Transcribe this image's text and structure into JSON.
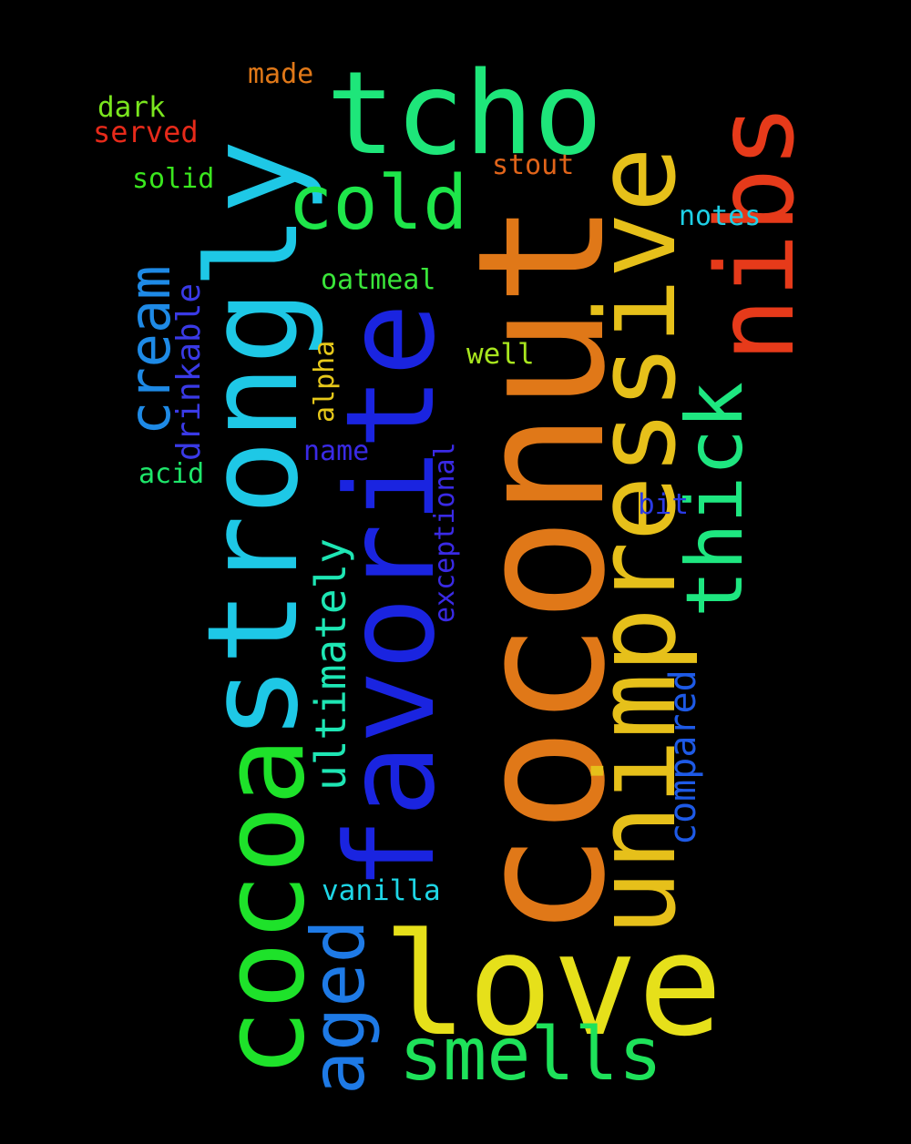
{
  "words": [
    {
      "id": "coconut",
      "text": "coconut",
      "color": "#e07818"
    },
    {
      "id": "favorite",
      "text": "favorite",
      "color": "#1a24e0"
    },
    {
      "id": "strongly",
      "text": "strongly",
      "color": "#1ec8e6"
    },
    {
      "id": "cocoa",
      "text": "cocoa",
      "color": "#1ee22a"
    },
    {
      "id": "unimpressive",
      "text": "unimpressive",
      "color": "#e6c01a"
    },
    {
      "id": "tcho",
      "text": "tcho",
      "color": "#1ee67a"
    },
    {
      "id": "love",
      "text": "love",
      "color": "#e6e01a"
    },
    {
      "id": "nibs",
      "text": "nibs",
      "color": "#e63a1a"
    },
    {
      "id": "smells",
      "text": "smells",
      "color": "#1ee25a"
    },
    {
      "id": "thick",
      "text": "thick",
      "color": "#1ee680"
    },
    {
      "id": "cold",
      "text": "cold",
      "color": "#1ee64a"
    },
    {
      "id": "cream",
      "text": "cream",
      "color": "#1e8ae6"
    },
    {
      "id": "aged",
      "text": "aged",
      "color": "#1e7ae6"
    },
    {
      "id": "ultimately",
      "text": "ultimately",
      "color": "#1ee6b4"
    },
    {
      "id": "compared",
      "text": "compared",
      "color": "#1e5ae6"
    },
    {
      "id": "drinkable",
      "text": "drinkable",
      "color": "#3a3ae6"
    },
    {
      "id": "exceptional",
      "text": "exceptional",
      "color": "#3a2ae6"
    },
    {
      "id": "alpha",
      "text": "alpha",
      "color": "#e6c81a"
    },
    {
      "id": "made",
      "text": "made",
      "color": "#e07818"
    },
    {
      "id": "dark",
      "text": "dark",
      "color": "#7ae61e"
    },
    {
      "id": "served",
      "text": "served",
      "color": "#e62a1a"
    },
    {
      "id": "solid",
      "text": "solid",
      "color": "#3ae61e"
    },
    {
      "id": "stout",
      "text": "stout",
      "color": "#e0641a"
    },
    {
      "id": "notes",
      "text": "notes",
      "color": "#1ed0e6"
    },
    {
      "id": "oatmeal",
      "text": "oatmeal",
      "color": "#3ae63a"
    },
    {
      "id": "well",
      "text": "well",
      "color": "#a8e61e"
    },
    {
      "id": "name",
      "text": "name",
      "color": "#3a2ae6"
    },
    {
      "id": "acid",
      "text": "acid",
      "color": "#1ee66a"
    },
    {
      "id": "bit",
      "text": "bit",
      "color": "#2a3ae6"
    },
    {
      "id": "vanilla",
      "text": "vanilla",
      "color": "#1ed6e6"
    }
  ]
}
